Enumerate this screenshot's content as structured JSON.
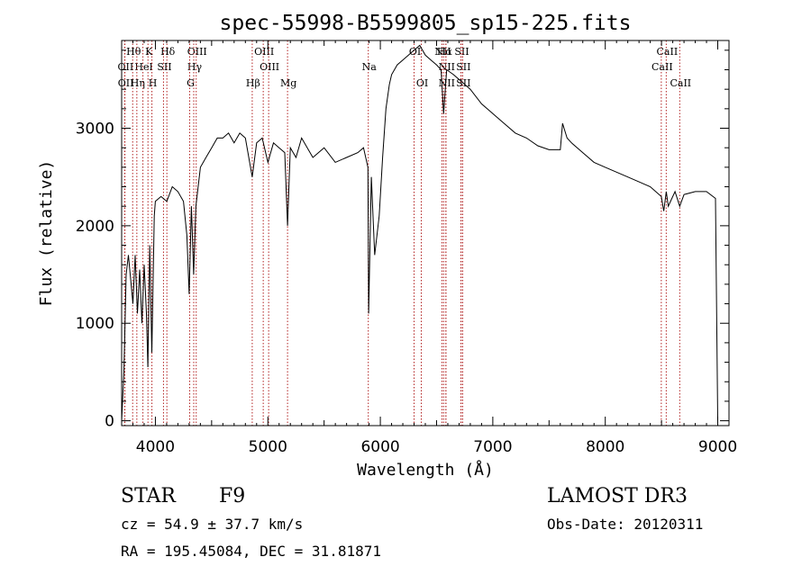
{
  "chart_data": {
    "type": "line",
    "title": "spec-55998-B5599805_sp15-225.fits",
    "xlabel": "Wavelength (Å)",
    "ylabel": "Flux (relative)",
    "xlim": [
      3700,
      9100
    ],
    "ylim": [
      -50,
      3900
    ],
    "xticks": [
      4000,
      5000,
      6000,
      7000,
      8000,
      9000
    ],
    "yticks": [
      0,
      1000,
      2000,
      3000
    ],
    "grid": false,
    "line_color": "#000000",
    "marker_color": "#b22222",
    "series": [
      {
        "x": [
          3700,
          3720,
          3740,
          3760,
          3780,
          3800,
          3820,
          3840,
          3860,
          3880,
          3900,
          3920,
          3933,
          3950,
          3968,
          3990,
          4000,
          4050,
          4101,
          4150,
          4200,
          4250,
          4280,
          4300,
          4320,
          4340,
          4360,
          4400,
          4450,
          4500,
          4550,
          4600,
          4650,
          4700,
          4750,
          4800,
          4861,
          4900,
          4950,
          5000,
          5050,
          5100,
          5150,
          5175,
          5200,
          5250,
          5300,
          5400,
          5500,
          5600,
          5700,
          5800,
          5850,
          5890,
          5896,
          5920,
          5950,
          5990,
          6020,
          6050,
          6080,
          6100,
          6150,
          6200,
          6250,
          6300,
          6350,
          6400,
          6450,
          6500,
          6540,
          6563,
          6590,
          6650,
          6700,
          6800,
          6900,
          7000,
          7100,
          7200,
          7300,
          7400,
          7500,
          7600,
          7620,
          7660,
          7700,
          7800,
          7900,
          8000,
          8100,
          8200,
          8300,
          8400,
          8498,
          8520,
          8542,
          8560,
          8620,
          8662,
          8700,
          8800,
          8900,
          8980,
          9000
        ],
        "y": [
          0,
          500,
          1500,
          1700,
          1450,
          1200,
          1700,
          1100,
          1550,
          1000,
          1600,
          1100,
          550,
          1800,
          700,
          2100,
          2250,
          2300,
          2250,
          2400,
          2350,
          2250,
          1900,
          1300,
          2200,
          1500,
          2200,
          2600,
          2700,
          2800,
          2900,
          2900,
          2950,
          2850,
          2950,
          2900,
          2500,
          2850,
          2900,
          2650,
          2850,
          2800,
          2750,
          2000,
          2800,
          2700,
          2900,
          2700,
          2800,
          2650,
          2700,
          2750,
          2800,
          2600,
          1100,
          2500,
          1700,
          2100,
          2700,
          3200,
          3450,
          3550,
          3650,
          3700,
          3750,
          3800,
          3850,
          3750,
          3700,
          3650,
          3600,
          3150,
          3600,
          3550,
          3500,
          3400,
          3250,
          3150,
          3050,
          2950,
          2900,
          2820,
          2780,
          2780,
          3050,
          2900,
          2850,
          2750,
          2650,
          2600,
          2550,
          2500,
          2450,
          2400,
          2300,
          2150,
          2350,
          2200,
          2350,
          2200,
          2320,
          2350,
          2350,
          2280,
          0
        ]
      }
    ],
    "line_markers": [
      {
        "name": "Hθ",
        "x": 3798,
        "row": 0
      },
      {
        "name": "OII",
        "x": 3727,
        "row": 1
      },
      {
        "name": "OII",
        "x": 3729,
        "row": 2
      },
      {
        "name": "K",
        "x": 3934,
        "row": 0
      },
      {
        "name": "HeI",
        "x": 3889,
        "row": 1
      },
      {
        "name": "Hη",
        "x": 3835,
        "row": 2
      },
      {
        "name": "Hδ",
        "x": 4102,
        "row": 0
      },
      {
        "name": "SII",
        "x": 4072,
        "row": 1
      },
      {
        "name": "H",
        "x": 3969,
        "row": 2
      },
      {
        "name": "OIII",
        "x": 4363,
        "row": 0
      },
      {
        "name": "Hγ",
        "x": 4341,
        "row": 1
      },
      {
        "name": "G",
        "x": 4305,
        "row": 2
      },
      {
        "name": "OIII",
        "x": 4959,
        "row": 0
      },
      {
        "name": "OIII",
        "x": 5007,
        "row": 1
      },
      {
        "name": "Hβ",
        "x": 4861,
        "row": 2
      },
      {
        "name": "Mg",
        "x": 5175,
        "row": 2
      },
      {
        "name": "Na",
        "x": 5893,
        "row": 1
      },
      {
        "name": "OI",
        "x": 6300,
        "row": 0
      },
      {
        "name": "OI",
        "x": 6364,
        "row": 2
      },
      {
        "name": "NII",
        "x": 6548,
        "row": 0
      },
      {
        "name": "NII",
        "x": 6583,
        "row": 1
      },
      {
        "name": "NII",
        "x": 6583,
        "row": 2
      },
      {
        "name": "Hα",
        "x": 6563,
        "row": 0
      },
      {
        "name": "SII",
        "x": 6716,
        "row": 0
      },
      {
        "name": "SII",
        "x": 6731,
        "row": 1
      },
      {
        "name": "SII",
        "x": 6731,
        "row": 2
      },
      {
        "name": "CaII",
        "x": 8542,
        "row": 0
      },
      {
        "name": "CaII",
        "x": 8498,
        "row": 1
      },
      {
        "name": "CaII",
        "x": 8662,
        "row": 2
      }
    ]
  },
  "info": {
    "object_class": "STAR",
    "subclass": "F9",
    "survey": "LAMOST DR3",
    "redshift": "cz = 54.9 ± 37.7 km/s",
    "obs_date": "Obs-Date: 20120311",
    "coords": "RA = 195.45084, DEC =  31.81871"
  }
}
